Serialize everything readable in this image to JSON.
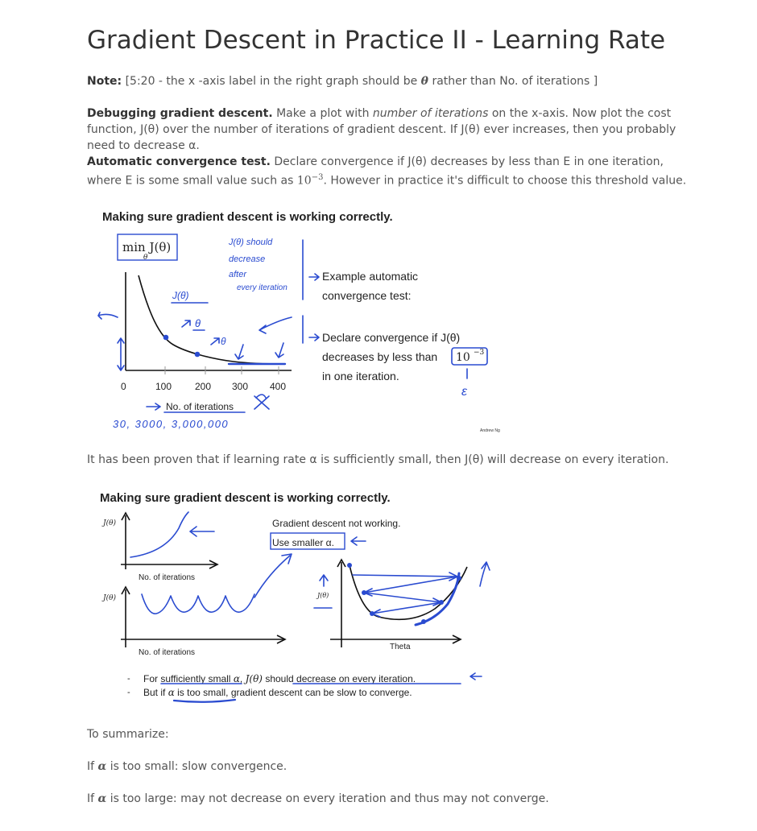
{
  "title": "Gradient Descent in Practice II - Learning Rate",
  "note": {
    "label": "Note:",
    "text_before": " [5:20 - the x -axis label in the right graph should be ",
    "theta": "θ",
    "text_after": " rather than No. of iterations ]"
  },
  "debugging": {
    "label": "Debugging gradient descent.",
    "text1": " Make a plot with ",
    "italic": "number of iterations",
    "text2": " on the x-axis. Now plot the cost function, J(θ) over the number of iterations of gradient descent. If J(θ) ever increases, then you probably need to decrease α."
  },
  "auto_test": {
    "label": "Automatic convergence test.",
    "text1": " Declare convergence if J(θ) decreases by less than E in one iteration, where E is some small value such as ",
    "math_base": "10",
    "math_exp": "−3",
    "text2": ". However in practice it's difficult to choose this threshold value."
  },
  "slide1": {
    "heading": "Making sure gradient descent is working correctly.",
    "min_label": "min J(θ)",
    "min_sub": "θ",
    "x_ticks": [
      "0",
      "100",
      "200",
      "300",
      "400"
    ],
    "x_label": "No. of iterations",
    "example_line1": "Example automatic",
    "example_line2": "convergence test:",
    "declare_line1": "Declare convergence if J(θ)",
    "declare_line2a": "decreases by less than ",
    "declare_math": "10",
    "declare_exp": "−3",
    "declare_line3": "in one iteration.",
    "credit": "Andrew Ng",
    "hand_note1": "J(θ) should",
    "hand_note2": "decrease",
    "hand_note3": "after",
    "hand_note4": "every iteration",
    "hand_j": "J(θ)",
    "hand_theta": "θ",
    "hand_counts": "30, 3000, 3,000,000",
    "hand_eps": "ε"
  },
  "proof_text": "It has been proven that if learning rate α is sufficiently small, then J(θ) will decrease on every iteration.",
  "slide2": {
    "heading": "Making sure gradient descent is working correctly.",
    "j_label_top": "J(θ)",
    "j_label_mid": "J(θ)",
    "j_label_right": "J(θ)",
    "x_label_top": "No. of iterations",
    "x_label_bottom": "No. of iterations",
    "theta_label": "Theta",
    "not_working": "Gradient descent not working.",
    "use_smaller": "Use smaller α.",
    "bullet1_a": "For sufficiently small ",
    "bullet1_alpha": "α",
    "bullet1_b": ", ",
    "bullet1_j": "J(θ)",
    "bullet1_c": " should decrease on every iteration.",
    "bullet2_a": "But if ",
    "bullet2_alpha": "α",
    "bullet2_b": " is too small, gradient descent can be slow to converge."
  },
  "summary": {
    "heading": "To summarize:",
    "small_a": "If ",
    "small_alpha": "α",
    "small_b": " is too small: slow convergence.",
    "large_a": "If ",
    "large_alpha": "α",
    "large_b": " is too large: may not decrease on every iteration and thus may not converge."
  },
  "colors": {
    "ink": "#2a4bd0",
    "text": "#555555",
    "heading": "#333333"
  }
}
